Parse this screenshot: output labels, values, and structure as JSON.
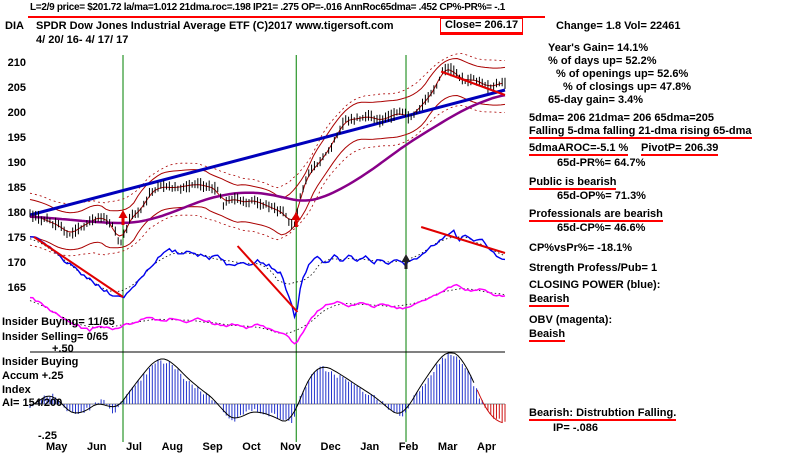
{
  "header": {
    "line1": "L=2/9  price= $201.72  la/ma=1.012 21dma.roc=.198 IP21= .275 OP=-.016 AnnRoc65dma= .452 CP%-PR%= -.1",
    "symbol": "DIA",
    "title": "SPDR Dow Jones Industrial Average ETF  (C)2017 www.tigersoft.com",
    "close_label": "Close=  206.17",
    "change_label": "Change= 1.8 Vol= 22461",
    "date_range": "4/ 20/ 16- 4/ 17/ 17"
  },
  "left_labels": {
    "insider_buying": "Insider Buying= 11/65",
    "insider_selling": "Insider Selling= 0/65",
    "panel_line1": "Insider Buying",
    "panel_line2": "Accum  +.25",
    "panel_line3": "Index",
    "panel_line4": "AI= 154/200"
  },
  "right_stats": [
    "Year's Gain= 14.1%",
    "% of days up= 52.2%",
    "% of openings up= 52.6%",
    "% of closings up= 47.8%",
    "65-day gain= 3.4%",
    "5dma= 206 21dma= 206 65dma=205",
    "Falling 5-dma falling 21-dma rising 65-dma",
    "5dmaAROC=-5.1 %",
    "PivotP= 206.39",
    "65d-PR%= 64.7%",
    "Public is bearish",
    "65d-OP%= 71.3%",
    "Professionals are bearish",
    "65d-CP%= 46.6%",
    "CP%vsPr%= -18.1%",
    "Strength Profess/Pub= 1",
    "CLOSING POWER (blue):",
    "Bearish",
    "OBV (magenta):",
    "Beaish",
    "Bearish: Distrubtion Falling.",
    "IP= -.086"
  ],
  "chart_data": {
    "type": "candlestick",
    "title": "DIA SPDR Dow Jones Industrial Average ETF 4/20/16 - 4/17/17",
    "ylim": [
      165,
      210
    ],
    "price_ticks": [
      "210",
      "205",
      "200",
      "195",
      "190",
      "185",
      "180",
      "175",
      "170",
      "165"
    ],
    "hist_ticks": [
      "+.50",
      "+.25",
      "-.25"
    ],
    "x_months": [
      "May",
      "Jun",
      "Jul",
      "Aug",
      "Sep",
      "Oct",
      "Nov",
      "Dec",
      "Jan",
      "Feb",
      "Mar",
      "Apr"
    ],
    "months_span": 11.9,
    "bar_count": 168,
    "band_upper": 3.2,
    "band_lower": -4.2,
    "signals": [
      2.33,
      6.67,
      9.42
    ],
    "arrows": [
      {
        "m": 2.33,
        "p": 180.6,
        "color": "#e00000"
      },
      {
        "m": 6.67,
        "p": 180.2,
        "color": "#e00000"
      },
      {
        "m": 9.42,
        "p": 171.8,
        "color": "#222222"
      }
    ],
    "colors": {
      "signal": "#008000",
      "band": "#aa0000",
      "ma": "#880088",
      "trend": "#0000bb",
      "cp": "#0000ee",
      "obv": "#ff00ff",
      "hist": "#2233cc",
      "hist_neg": "#cc1111"
    },
    "series": {
      "price_close": [
        [
          0,
          179.8
        ],
        [
          0.4,
          178.6
        ],
        [
          0.8,
          177.2
        ],
        [
          1.0,
          175.6
        ],
        [
          1.2,
          176.8
        ],
        [
          1.5,
          178.2
        ],
        [
          1.8,
          179.4
        ],
        [
          2.0,
          178.0
        ],
        [
          2.1,
          177.4
        ],
        [
          2.25,
          173.2
        ],
        [
          2.5,
          179.0
        ],
        [
          2.8,
          180.6
        ],
        [
          3.0,
          184.0
        ],
        [
          3.3,
          185.3
        ],
        [
          3.6,
          185.0
        ],
        [
          3.9,
          185.4
        ],
        [
          4.2,
          185.8
        ],
        [
          4.5,
          185.2
        ],
        [
          4.7,
          184.8
        ],
        [
          4.85,
          181.6
        ],
        [
          5.1,
          183.2
        ],
        [
          5.3,
          182.0
        ],
        [
          5.6,
          182.6
        ],
        [
          5.9,
          181.6
        ],
        [
          6.1,
          180.9
        ],
        [
          6.4,
          179.8
        ],
        [
          6.55,
          177.6
        ],
        [
          6.67,
          178.2
        ],
        [
          6.78,
          184.0
        ],
        [
          7.0,
          188.0
        ],
        [
          7.3,
          190.4
        ],
        [
          7.6,
          194.2
        ],
        [
          7.9,
          198.6
        ],
        [
          8.2,
          198.8
        ],
        [
          8.5,
          199.4
        ],
        [
          8.8,
          198.4
        ],
        [
          9.1,
          199.6
        ],
        [
          9.3,
          200.1
        ],
        [
          9.5,
          199.0
        ],
        [
          9.7,
          200.5
        ],
        [
          10.0,
          203.2
        ],
        [
          10.2,
          205.6
        ],
        [
          10.35,
          208.9
        ],
        [
          10.5,
          209.0
        ],
        [
          10.7,
          207.6
        ],
        [
          10.9,
          206.3
        ],
        [
          11.1,
          206.9
        ],
        [
          11.3,
          206.0
        ],
        [
          11.5,
          205.2
        ],
        [
          11.7,
          205.6
        ],
        [
          11.9,
          206.2
        ]
      ],
      "ma65": [
        [
          0,
          179.3
        ],
        [
          0.8,
          178.8
        ],
        [
          1.6,
          178.2
        ],
        [
          2.4,
          177.9
        ],
        [
          3.0,
          178.6
        ],
        [
          3.6,
          180.2
        ],
        [
          4.2,
          182.2
        ],
        [
          4.8,
          183.6
        ],
        [
          5.4,
          184.2
        ],
        [
          6.0,
          183.8
        ],
        [
          6.5,
          182.8
        ],
        [
          6.9,
          182.2
        ],
        [
          7.3,
          183.0
        ],
        [
          7.8,
          184.8
        ],
        [
          8.3,
          187.2
        ],
        [
          8.8,
          190.0
        ],
        [
          9.3,
          193.0
        ],
        [
          9.8,
          195.6
        ],
        [
          10.3,
          198.0
        ],
        [
          10.8,
          200.4
        ],
        [
          11.3,
          202.2
        ],
        [
          11.9,
          203.8
        ]
      ],
      "trendline": [
        [
          0,
          179.6
        ],
        [
          11.9,
          204.6
        ]
      ],
      "closing_power": [
        [
          0,
          175.4
        ],
        [
          0.3,
          174.2
        ],
        [
          0.6,
          172.4
        ],
        [
          0.9,
          170.2
        ],
        [
          1.2,
          168.4
        ],
        [
          1.5,
          166.6
        ],
        [
          1.8,
          164.8
        ],
        [
          2.1,
          163.6
        ],
        [
          2.3,
          163.0
        ],
        [
          2.5,
          164.4
        ],
        [
          2.7,
          166.4
        ],
        [
          2.9,
          168.2
        ],
        [
          3.1,
          170.0
        ],
        [
          3.3,
          171.6
        ],
        [
          3.5,
          172.6
        ],
        [
          3.8,
          171.8
        ],
        [
          4.0,
          172.6
        ],
        [
          4.2,
          171.6
        ],
        [
          4.5,
          171.0
        ],
        [
          4.7,
          171.8
        ],
        [
          4.9,
          170.0
        ],
        [
          5.1,
          169.2
        ],
        [
          5.3,
          170.4
        ],
        [
          5.5,
          169.8
        ],
        [
          5.7,
          170.6
        ],
        [
          5.9,
          169.8
        ],
        [
          6.1,
          169.0
        ],
        [
          6.3,
          167.6
        ],
        [
          6.5,
          163.0
        ],
        [
          6.65,
          158.8
        ],
        [
          6.8,
          166.0
        ],
        [
          7.0,
          169.8
        ],
        [
          7.2,
          171.2
        ],
        [
          7.4,
          169.8
        ],
        [
          7.6,
          171.4
        ],
        [
          7.8,
          170.4
        ],
        [
          8.0,
          171.6
        ],
        [
          8.2,
          170.2
        ],
        [
          8.4,
          171.2
        ],
        [
          8.6,
          170.0
        ],
        [
          8.8,
          170.8
        ],
        [
          9.0,
          169.8
        ],
        [
          9.2,
          170.6
        ],
        [
          9.4,
          169.6
        ],
        [
          9.6,
          170.8
        ],
        [
          9.8,
          171.6
        ],
        [
          10.0,
          172.8
        ],
        [
          10.2,
          174.2
        ],
        [
          10.4,
          175.6
        ],
        [
          10.6,
          176.6
        ],
        [
          10.75,
          174.6
        ],
        [
          10.9,
          175.8
        ],
        [
          11.1,
          174.0
        ],
        [
          11.3,
          175.0
        ],
        [
          11.5,
          172.6
        ],
        [
          11.7,
          171.6
        ],
        [
          11.9,
          170.8
        ]
      ],
      "obv": [
        [
          0,
          163.2
        ],
        [
          0.4,
          161.2
        ],
        [
          0.8,
          159.0
        ],
        [
          1.2,
          157.4
        ],
        [
          1.5,
          156.6
        ],
        [
          1.8,
          157.4
        ],
        [
          2.1,
          156.8
        ],
        [
          2.4,
          157.6
        ],
        [
          2.7,
          158.4
        ],
        [
          3.0,
          159.2
        ],
        [
          3.3,
          158.4
        ],
        [
          3.6,
          159.0
        ],
        [
          3.9,
          158.2
        ],
        [
          4.2,
          158.8
        ],
        [
          4.5,
          158.2
        ],
        [
          4.8,
          157.4
        ],
        [
          5.1,
          157.8
        ],
        [
          5.4,
          157.0
        ],
        [
          5.7,
          157.6
        ],
        [
          6.0,
          156.8
        ],
        [
          6.3,
          156.2
        ],
        [
          6.5,
          155.0
        ],
        [
          6.65,
          153.4
        ],
        [
          6.85,
          156.4
        ],
        [
          7.1,
          159.6
        ],
        [
          7.4,
          161.6
        ],
        [
          7.7,
          162.4
        ],
        [
          8.0,
          161.4
        ],
        [
          8.3,
          162.2
        ],
        [
          8.6,
          161.2
        ],
        [
          8.9,
          161.8
        ],
        [
          9.2,
          160.8
        ],
        [
          9.5,
          161.4
        ],
        [
          9.8,
          162.2
        ],
        [
          10.1,
          163.4
        ],
        [
          10.4,
          164.8
        ],
        [
          10.7,
          165.6
        ],
        [
          11.0,
          164.4
        ],
        [
          11.3,
          164.9
        ],
        [
          11.6,
          163.8
        ],
        [
          11.9,
          163.4
        ]
      ],
      "accum_hist": [
        [
          0,
          -0.04
        ],
        [
          0.3,
          0.06
        ],
        [
          0.6,
          0.1
        ],
        [
          0.9,
          -0.06
        ],
        [
          1.2,
          -0.1
        ],
        [
          1.5,
          -0.04
        ],
        [
          1.8,
          0.04
        ],
        [
          2.1,
          -0.08
        ],
        [
          2.35,
          0.04
        ],
        [
          2.6,
          0.16
        ],
        [
          2.9,
          0.3
        ],
        [
          3.2,
          0.42
        ],
        [
          3.5,
          0.4
        ],
        [
          3.8,
          0.28
        ],
        [
          4.1,
          0.18
        ],
        [
          4.4,
          0.1
        ],
        [
          4.7,
          0.02
        ],
        [
          4.9,
          -0.1
        ],
        [
          5.15,
          -0.16
        ],
        [
          5.4,
          -0.08
        ],
        [
          5.7,
          -0.06
        ],
        [
          6.0,
          -0.1
        ],
        [
          6.3,
          -0.14
        ],
        [
          6.55,
          -0.2
        ],
        [
          6.75,
          0.05
        ],
        [
          7.0,
          0.25
        ],
        [
          7.3,
          0.36
        ],
        [
          7.6,
          0.3
        ],
        [
          7.9,
          0.24
        ],
        [
          8.2,
          0.16
        ],
        [
          8.5,
          0.1
        ],
        [
          8.8,
          0.02
        ],
        [
          9.1,
          -0.08
        ],
        [
          9.35,
          -0.12
        ],
        [
          9.6,
          0.06
        ],
        [
          9.9,
          0.22
        ],
        [
          10.2,
          0.38
        ],
        [
          10.5,
          0.5
        ],
        [
          10.8,
          0.42
        ],
        [
          11.0,
          0.3
        ],
        [
          11.2,
          0.12
        ],
        [
          11.4,
          -0.04
        ],
        [
          11.6,
          -0.14
        ],
        [
          11.9,
          -0.18
        ]
      ],
      "red_trendlines": [
        [
          0.1,
          175.2,
          2.33,
          163.2
        ],
        [
          5.2,
          173.4,
          6.7,
          160.2
        ],
        [
          9.8,
          177.2,
          11.9,
          172.0
        ],
        [
          10.3,
          208.3,
          11.9,
          203.6
        ]
      ]
    }
  }
}
